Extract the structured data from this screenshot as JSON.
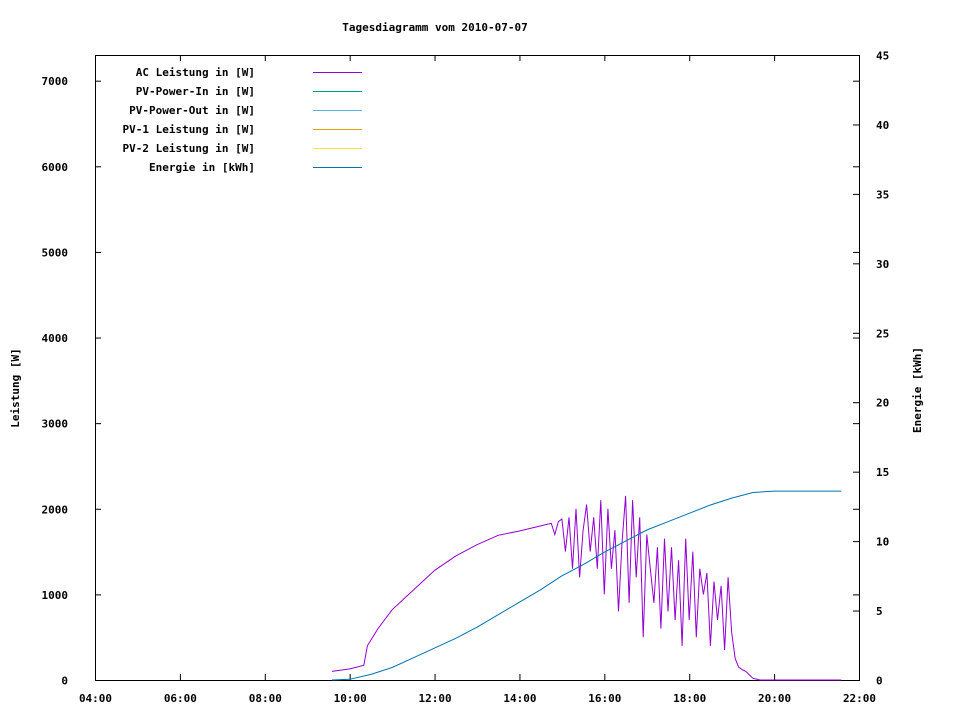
{
  "chart_data": {
    "type": "line",
    "title": "Tagesdiagramm vom 2010-07-07",
    "xlabel": "",
    "ylabel": "Leistung [W]",
    "y2label": "Energie [kWh]",
    "xlim": [
      "04:00",
      "22:00"
    ],
    "ylim": [
      0,
      7300
    ],
    "y2lim": [
      0,
      45
    ],
    "x_ticks": [
      "04:00",
      "06:00",
      "08:00",
      "10:00",
      "12:00",
      "14:00",
      "16:00",
      "18:00",
      "20:00",
      "22:00"
    ],
    "y_ticks": [
      "0",
      "1000",
      "2000",
      "3000",
      "4000",
      "5000",
      "6000",
      "7000"
    ],
    "y2_ticks": [
      "0",
      "5",
      "10",
      "15",
      "20",
      "25",
      "30",
      "35",
      "40",
      "45"
    ],
    "legend_position": "top-left",
    "grid": false,
    "series": [
      {
        "name": "AC Leistung in [W]",
        "color": "#9400d3",
        "axis": "left",
        "x": [
          "09:35",
          "10:00",
          "10:20",
          "10:25",
          "10:40",
          "11:00",
          "11:30",
          "12:00",
          "12:30",
          "13:00",
          "13:30",
          "14:00",
          "14:30",
          "14:45",
          "14:50",
          "14:55",
          "15:00",
          "15:05",
          "15:10",
          "15:15",
          "15:20",
          "15:25",
          "15:30",
          "15:35",
          "15:40",
          "15:45",
          "15:50",
          "15:55",
          "16:00",
          "16:05",
          "16:10",
          "16:15",
          "16:20",
          "16:25",
          "16:30",
          "16:35",
          "16:40",
          "16:45",
          "16:50",
          "16:55",
          "17:00",
          "17:05",
          "17:10",
          "17:15",
          "17:20",
          "17:25",
          "17:30",
          "17:35",
          "17:40",
          "17:45",
          "17:50",
          "17:55",
          "18:00",
          "18:05",
          "18:10",
          "18:15",
          "18:20",
          "18:25",
          "18:30",
          "18:35",
          "18:40",
          "18:45",
          "18:50",
          "18:55",
          "19:00",
          "19:05",
          "19:10",
          "19:15",
          "19:20",
          "19:25",
          "19:30",
          "19:35",
          "19:40",
          "19:50",
          "20:00",
          "20:30",
          "21:00",
          "21:20",
          "21:35"
        ],
        "values": [
          100,
          130,
          170,
          400,
          600,
          820,
          1050,
          1280,
          1450,
          1580,
          1690,
          1740,
          1800,
          1830,
          1700,
          1850,
          1880,
          1500,
          1900,
          1300,
          2000,
          1200,
          1750,
          2050,
          1500,
          1900,
          1300,
          2100,
          1000,
          2000,
          1300,
          1750,
          800,
          1600,
          2150,
          900,
          2100,
          1200,
          1900,
          500,
          1700,
          1300,
          900,
          1550,
          600,
          1650,
          800,
          1550,
          700,
          1400,
          400,
          1650,
          700,
          1500,
          500,
          1300,
          1000,
          1250,
          400,
          1150,
          700,
          1100,
          350,
          1200,
          550,
          250,
          150,
          120,
          100,
          60,
          20,
          10,
          0,
          0,
          0,
          0,
          0,
          0,
          0
        ]
      },
      {
        "name": "PV-Power-In in [W]",
        "color": "#009e73",
        "axis": "left",
        "x": [],
        "values": []
      },
      {
        "name": "PV-Power-Out in [W]",
        "color": "#56b4e9",
        "axis": "left",
        "x": [],
        "values": []
      },
      {
        "name": "PV-1 Leistung in [W]",
        "color": "#e69f00",
        "axis": "left",
        "x": [],
        "values": []
      },
      {
        "name": "PV-2 Leistung in [W]",
        "color": "#f0e442",
        "axis": "left",
        "x": [],
        "values": []
      },
      {
        "name": "Energie in [kWh]",
        "color": "#0072b2",
        "axis": "right",
        "x": [
          "09:35",
          "10:00",
          "10:30",
          "11:00",
          "11:30",
          "12:00",
          "12:30",
          "13:00",
          "13:30",
          "14:00",
          "14:30",
          "15:00",
          "15:30",
          "16:00",
          "16:30",
          "17:00",
          "17:30",
          "18:00",
          "18:30",
          "19:00",
          "19:30",
          "20:00",
          "20:30",
          "21:00",
          "21:35"
        ],
        "values": [
          0,
          0.05,
          0.4,
          0.9,
          1.6,
          2.3,
          3.0,
          3.8,
          4.7,
          5.6,
          6.5,
          7.5,
          8.3,
          9.2,
          10.0,
          10.8,
          11.4,
          12.0,
          12.6,
          13.1,
          13.5,
          13.6,
          13.6,
          13.6,
          13.6
        ]
      }
    ]
  }
}
